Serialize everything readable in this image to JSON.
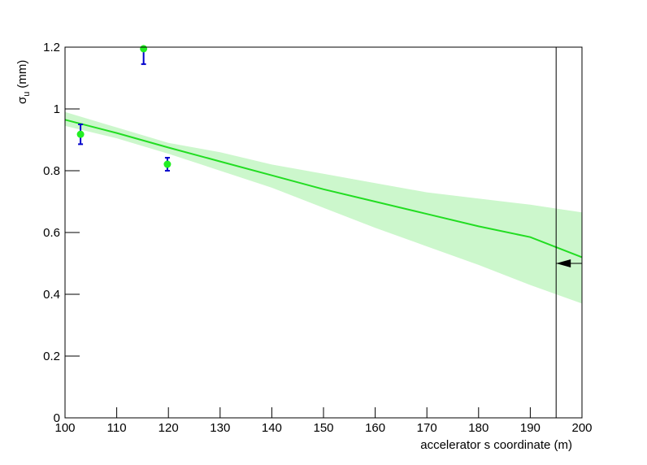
{
  "chart_data": {
    "type": "scatter",
    "xlabel": "accelerator s coordinate (m)",
    "ylabel": {
      "symbol": "σ",
      "subscript": "u",
      "unit": "(mm)"
    },
    "xlim": [
      100,
      200
    ],
    "ylim": [
      0,
      1.2
    ],
    "xticks": [
      100,
      110,
      120,
      130,
      140,
      150,
      160,
      170,
      180,
      190,
      200
    ],
    "yticks": [
      0,
      0.2,
      0.4,
      0.6,
      0.8,
      1,
      1.2
    ],
    "points": {
      "color": "#22ee22",
      "error_color": "#0000cc",
      "x": [
        103,
        115.2,
        119.8
      ],
      "values": [
        0.918,
        1.195,
        0.821
      ],
      "errors": [
        0.032,
        0.05,
        0.021
      ]
    },
    "fit": {
      "color": "#22dd22",
      "band_color": "#ccf7cc",
      "x": [
        100,
        110,
        120,
        130,
        140,
        150,
        160,
        170,
        180,
        190,
        200
      ],
      "values": [
        0.965,
        0.922,
        0.875,
        0.83,
        0.785,
        0.74,
        0.7,
        0.66,
        0.62,
        0.585,
        0.52
      ],
      "upper": [
        0.99,
        0.94,
        0.89,
        0.86,
        0.82,
        0.79,
        0.76,
        0.73,
        0.71,
        0.69,
        0.665
      ],
      "lower": [
        0.945,
        0.905,
        0.855,
        0.8,
        0.745,
        0.68,
        0.615,
        0.555,
        0.495,
        0.43,
        0.37
      ]
    },
    "marker_x": 195,
    "arrow_y": 0.5
  }
}
